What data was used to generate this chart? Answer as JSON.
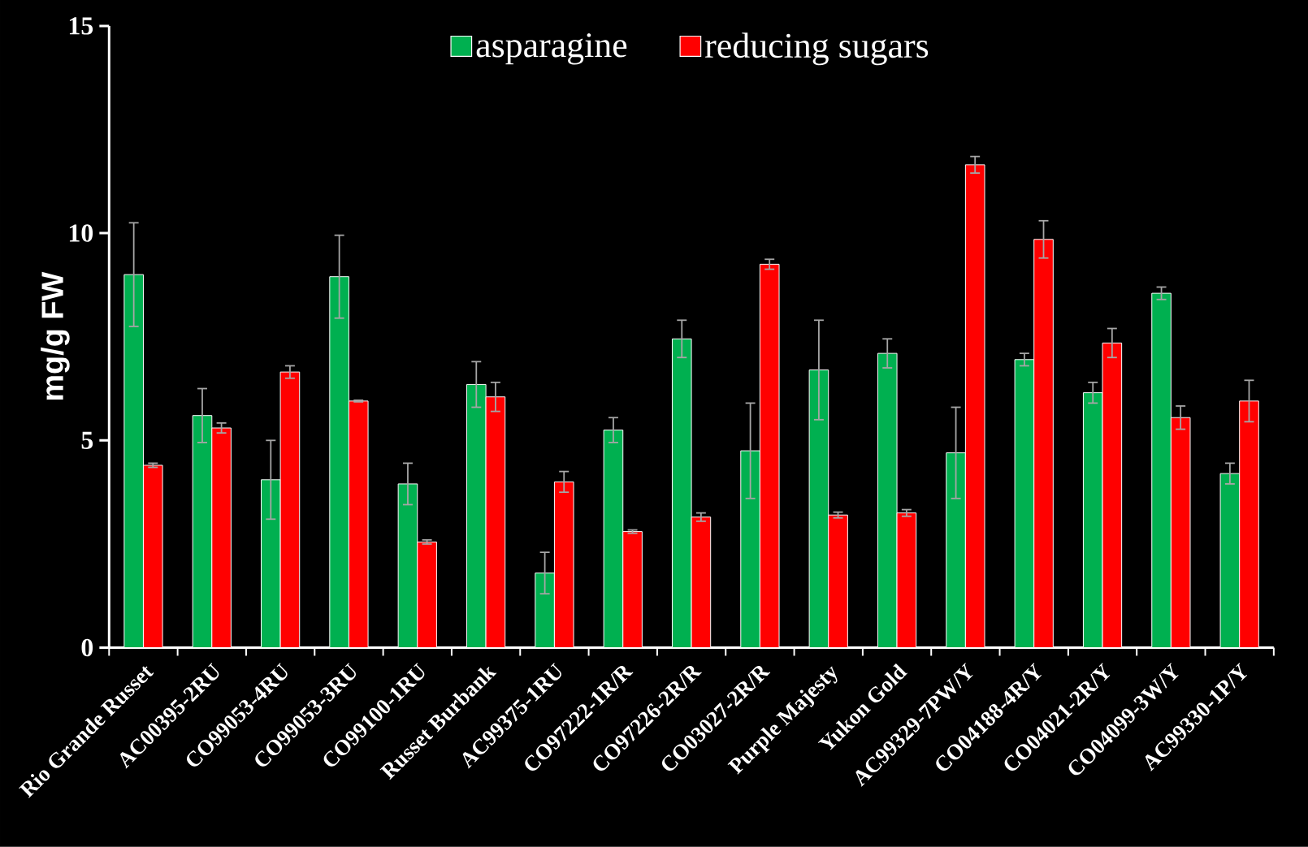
{
  "chart_data": {
    "type": "bar",
    "ylabel": "mg/g FW",
    "categories": [
      "Rio Grande Russet",
      "AC00395-2RU",
      "CO99053-4RU",
      "CO99053-3RU",
      "CO99100-1RU",
      "Russet Burbank",
      "AC99375-1RU",
      "CO97222-1R/R",
      "CO97226-2R/R",
      "CO03027-2R/R",
      "Purple Majesty",
      "Yukon Gold",
      "AC99329-7PW/Y",
      "CO04188-4R/Y",
      "CO04021-2R/Y",
      "CO04099-3W/Y",
      "AC99330-1P/Y"
    ],
    "series": [
      {
        "name": "asparagine",
        "color": "#00b050",
        "values": [
          9.0,
          5.6,
          4.05,
          8.95,
          3.95,
          6.35,
          1.8,
          5.25,
          7.45,
          4.75,
          6.7,
          7.1,
          4.7,
          6.95,
          6.15,
          8.55,
          4.2
        ],
        "errors": [
          1.25,
          0.65,
          0.95,
          1.0,
          0.5,
          0.55,
          0.5,
          0.3,
          0.45,
          1.15,
          1.2,
          0.35,
          1.1,
          0.15,
          0.25,
          0.15,
          0.25
        ]
      },
      {
        "name": "reducing sugars",
        "color": "#ff0000",
        "values": [
          4.4,
          5.3,
          6.65,
          5.95,
          2.55,
          6.05,
          4.0,
          2.8,
          3.15,
          9.25,
          3.2,
          3.25,
          11.65,
          9.85,
          7.35,
          5.55,
          5.95
        ],
        "errors": [
          0.05,
          0.12,
          0.15,
          0.02,
          0.05,
          0.35,
          0.25,
          0.04,
          0.1,
          0.12,
          0.07,
          0.08,
          0.2,
          0.45,
          0.35,
          0.28,
          0.5
        ]
      }
    ],
    "ylim": [
      0,
      15
    ],
    "yticks": [
      0,
      5,
      10,
      15
    ],
    "legend": "top"
  }
}
